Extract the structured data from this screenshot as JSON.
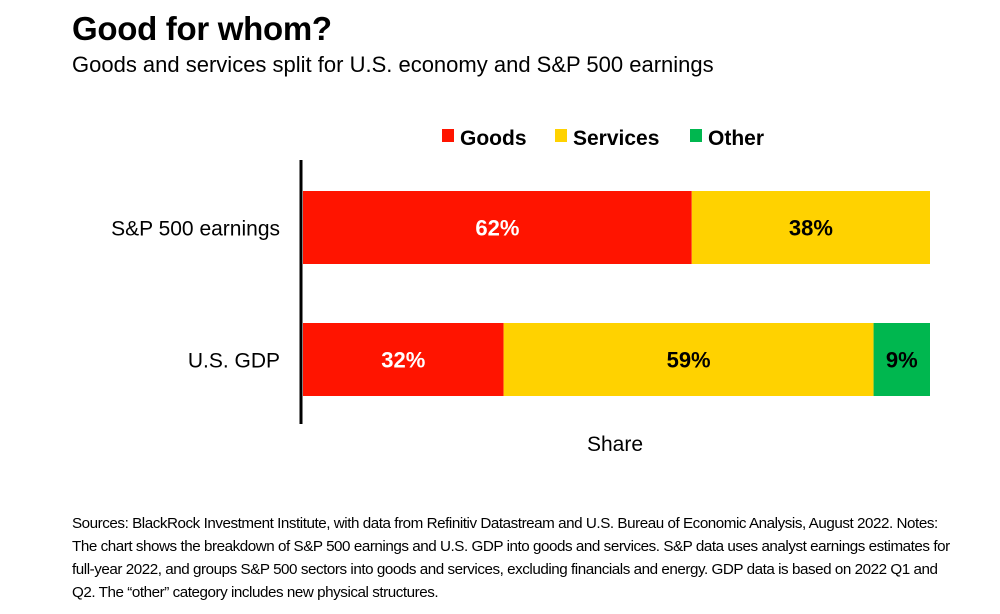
{
  "title": "Good for whom?",
  "subtitle": "Goods and services split for U.S. economy and S&P 500 earnings",
  "notes": "Sources: BlackRock Investment Institute, with data from Refinitiv Datastream and U.S. Bureau of Economic Analysis, August 2022. Notes: The chart shows the breakdown of S&P 500 earnings and U.S. GDP into goods and services. S&P data uses analyst earnings estimates for full-year 2022, and groups S&P 500 sectors into goods and services, excluding financials and energy. GDP data is based on 2022 Q1 and Q2. The “other” category includes new physical structures.",
  "chart_data": {
    "type": "bar",
    "orientation": "horizontal",
    "stacked": true,
    "title": "Good for whom?",
    "subtitle": "Goods and services split for U.S. economy and S&P 500 earnings",
    "xlabel": "Share",
    "ylabel": "",
    "xlim": [
      0,
      100
    ],
    "grid": false,
    "legend_position": "top",
    "categories": [
      "S&P 500 earnings",
      "U.S. GDP"
    ],
    "series": [
      {
        "name": "Goods",
        "color": "#ff1400",
        "label_color": "#ffffff",
        "values": [
          62,
          32
        ],
        "labels": [
          "62%",
          "32%"
        ]
      },
      {
        "name": "Services",
        "color": "#ffd200",
        "label_color": "#000000",
        "values": [
          38,
          59
        ],
        "labels": [
          "38%",
          "59%"
        ]
      },
      {
        "name": "Other",
        "color": "#00b74f",
        "label_color": "#000000",
        "values": [
          0,
          9
        ],
        "labels": [
          "",
          "9%"
        ]
      }
    ]
  }
}
